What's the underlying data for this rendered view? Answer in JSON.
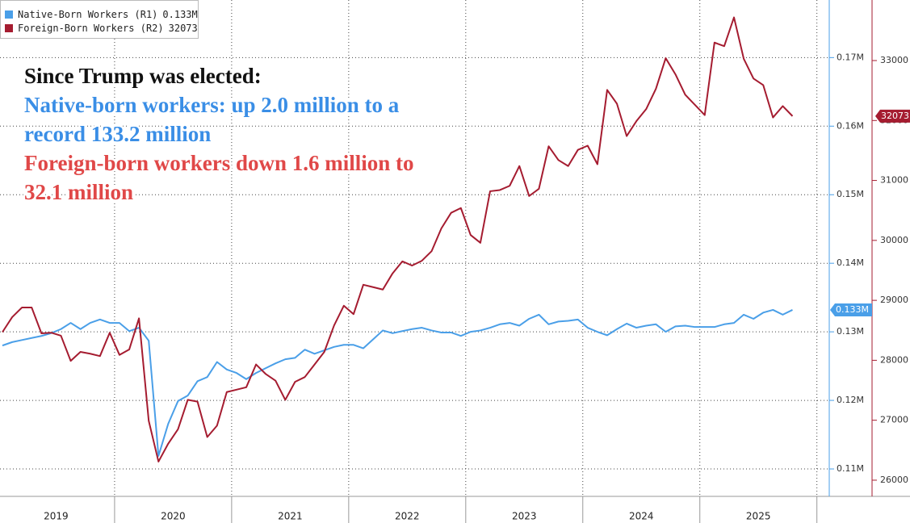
{
  "chart_data": {
    "type": "line",
    "annotations": [
      {
        "text": "Since Trump was elected:",
        "color": "#111111"
      },
      {
        "text": "Native-born workers: up 2.0 million to a",
        "color": "#3a8ee6"
      },
      {
        "text": "record 133.2 million",
        "color": "#3a8ee6"
      },
      {
        "text": "Foreign-born workers down 1.6 million to",
        "color": "#e04848"
      },
      {
        "text": "32.1 million",
        "color": "#e04848"
      }
    ],
    "categories": [
      null,
      null,
      null,
      null,
      null,
      null,
      "2019",
      null,
      null,
      null,
      null,
      null,
      null,
      null,
      null,
      null,
      null,
      null,
      "2020",
      null,
      null,
      null,
      null,
      null,
      null,
      null,
      null,
      null,
      null,
      null,
      "2021",
      null,
      null,
      null,
      null,
      null,
      null,
      null,
      null,
      null,
      null,
      null,
      "2022",
      null,
      null,
      null,
      null,
      null,
      null,
      null,
      null,
      null,
      null,
      null,
      "2023",
      null,
      null,
      null,
      null,
      null,
      null,
      null,
      null,
      null,
      null,
      null,
      "2024",
      null,
      null,
      null,
      null,
      null,
      null,
      null,
      null,
      null,
      null,
      null,
      "2025",
      null,
      null,
      null
    ],
    "ylim": [
      0.106,
      0.1784
    ],
    "yticks": [
      {
        "value": 0.11,
        "label": "0.11M"
      },
      {
        "value": 0.12,
        "label": "0.12M"
      },
      {
        "value": 0.13,
        "label": "0.13M"
      },
      {
        "value": 0.14,
        "label": "0.14M"
      },
      {
        "value": 0.15,
        "label": "0.15M"
      },
      {
        "value": 0.16,
        "label": "0.16M"
      },
      {
        "value": 0.17,
        "label": "0.17M"
      }
    ],
    "y2lim": [
      25730,
      34010
    ],
    "y2ticks": [
      26000,
      27000,
      28000,
      29000,
      30000,
      31000,
      32000,
      33000
    ],
    "grid": true,
    "legend": "top-left",
    "series": [
      {
        "name": "Native-Born Workers (R1)",
        "color": "#4a9fe8",
        "axis": "y",
        "last_label": "0.133M",
        "values": [
          0.128,
          0.1285,
          0.1288,
          0.1291,
          0.1294,
          0.1298,
          0.1304,
          0.1313,
          0.1304,
          0.1313,
          0.1318,
          0.1313,
          0.1313,
          0.1301,
          0.1306,
          0.1287,
          0.1119,
          0.1166,
          0.1199,
          0.1207,
          0.1228,
          0.1234,
          0.1256,
          0.1245,
          0.124,
          0.1231,
          0.124,
          0.1247,
          0.1254,
          0.126,
          0.1262,
          0.1274,
          0.1268,
          0.1273,
          0.1278,
          0.1281,
          0.1281,
          0.1276,
          0.1289,
          0.1302,
          0.1298,
          0.1301,
          0.1304,
          0.1306,
          0.1302,
          0.1299,
          0.1299,
          0.1294,
          0.13,
          0.1302,
          0.1306,
          0.1311,
          0.1313,
          0.1309,
          0.1319,
          0.1325,
          0.1311,
          0.1315,
          0.1316,
          0.1318,
          0.1306,
          0.13,
          0.1295,
          0.1304,
          0.1312,
          0.1306,
          0.1309,
          0.1311,
          0.13,
          0.1308,
          0.1309,
          0.1307,
          0.1307,
          0.1307,
          0.1311,
          0.1313,
          0.1325,
          0.1319,
          0.1328,
          0.1332,
          0.1325,
          0.1332
        ]
      },
      {
        "name": "Foreign-Born Workers (R2)",
        "color": "#a51c30",
        "axis": "y2",
        "last_label": "32073",
        "values": [
          28470,
          28720,
          28880,
          28880,
          28450,
          28460,
          28410,
          27990,
          28140,
          28110,
          28070,
          28460,
          28090,
          28180,
          28700,
          26990,
          26310,
          26610,
          26850,
          27340,
          27310,
          26720,
          26910,
          27470,
          27510,
          27550,
          27930,
          27770,
          27660,
          27340,
          27640,
          27720,
          27930,
          28140,
          28580,
          28910,
          28770,
          29260,
          29220,
          29180,
          29450,
          29650,
          29580,
          29660,
          29820,
          30200,
          30460,
          30540,
          30090,
          29960,
          30820,
          30840,
          30910,
          31240,
          30740,
          30860,
          31570,
          31340,
          31240,
          31510,
          31580,
          31270,
          32510,
          32280,
          31740,
          31990,
          32190,
          32530,
          33040,
          32770,
          32430,
          32260,
          32090,
          33300,
          33240,
          33720,
          33030,
          32700,
          32590,
          32050,
          32240,
          32073
        ]
      }
    ]
  }
}
